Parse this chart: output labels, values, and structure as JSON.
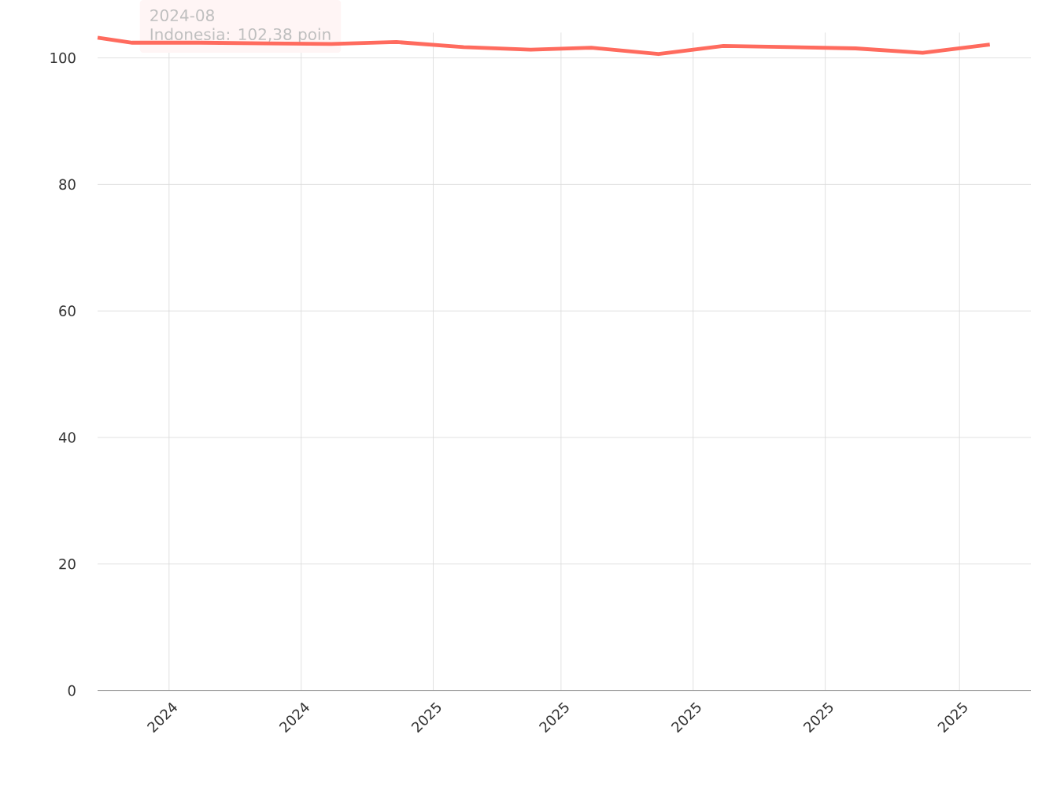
{
  "chart_data": {
    "type": "line",
    "x": [
      "2024-07-30",
      "2024-08-15",
      "2024-09-15",
      "2024-10-15",
      "2024-11-15",
      "2024-12-15",
      "2025-01-15",
      "2025-02-15",
      "2025-03-15",
      "2025-04-15",
      "2025-05-15",
      "2025-06-15",
      "2025-07-15",
      "2025-08-15",
      "2025-09-15"
    ],
    "series": [
      {
        "color": "#ff6b5e",
        "values": [
          103.2,
          102.4,
          102.4,
          102.3,
          102.2,
          102.5,
          101.7,
          101.3,
          101.6,
          100.6,
          101.9,
          101.7,
          101.5,
          100.8,
          102.1
        ]
      }
    ],
    "xlim": [
      "2024-07-30",
      "2025-10-04"
    ],
    "xticks": [
      {
        "value": "2024-09-01",
        "label": "2024"
      },
      {
        "value": "2024-11-01",
        "label": "2024"
      },
      {
        "value": "2025-01-01",
        "label": "2025"
      },
      {
        "value": "2025-03-01",
        "label": "2025"
      },
      {
        "value": "2025-05-01",
        "label": "2025"
      },
      {
        "value": "2025-07-01",
        "label": "2025"
      },
      {
        "value": "2025-09-01",
        "label": "2025"
      }
    ],
    "ylim": [
      0,
      104
    ],
    "yticks": [
      0,
      20,
      40,
      60,
      80,
      100
    ],
    "grid": true,
    "marker": "none",
    "line_style": "solid",
    "annotations": [
      "2024-08",
      "Indonesia: 102,38 poin"
    ]
  }
}
